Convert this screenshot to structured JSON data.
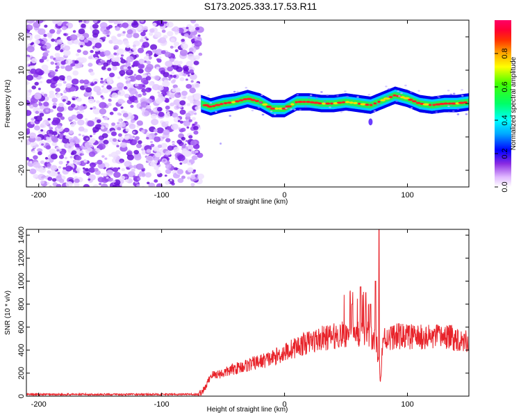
{
  "title": "S173.2025.333.17.53.R11",
  "colors": {
    "spectrogram_noise": "#7a2be0",
    "snr_line": "#e8232a",
    "axis": "#000000"
  },
  "chart_data": [
    {
      "type": "heatmap",
      "name": "spectrogram",
      "title": "S173.2025.333.17.53.R11",
      "xlabel": "Height of straight line (km)",
      "ylabel": "Frequency (Hz)",
      "xlim": [
        -210,
        150
      ],
      "ylim": [
        -25,
        25
      ],
      "xticks": [
        -200,
        -100,
        0,
        100
      ],
      "yticks": [
        -20,
        -10,
        0,
        10,
        20
      ],
      "noise_region_x": [
        -210,
        -68
      ],
      "signal_track": {
        "x": [
          -68,
          -60,
          -50,
          -40,
          -30,
          -20,
          -10,
          0,
          10,
          20,
          30,
          40,
          50,
          60,
          70,
          80,
          90,
          100,
          110,
          120,
          130,
          140,
          150
        ],
        "y": [
          0,
          -1,
          0,
          0.5,
          1.5,
          0.5,
          -1.5,
          -1.5,
          0.5,
          0.5,
          0,
          0,
          0.5,
          0,
          -0.5,
          1,
          2.5,
          1.5,
          0,
          -0.5,
          0,
          0,
          0.5
        ]
      },
      "colorbar": {
        "label": "Normalized spectral amplitude",
        "range": [
          0,
          1
        ],
        "ticks": [
          0.0,
          0.2,
          0.4,
          0.6,
          0.8
        ]
      }
    },
    {
      "type": "line",
      "name": "snr",
      "xlabel": "Height of straight line (km)",
      "ylabel": "SNR (10 * v/v)",
      "xlim": [
        -210,
        150
      ],
      "ylim": [
        0,
        1450
      ],
      "xticks": [
        -200,
        -100,
        0,
        100
      ],
      "yticks": [
        0,
        200,
        400,
        600,
        800,
        1000,
        1200,
        1400
      ],
      "envelope": {
        "x": [
          -210,
          -70,
          -65,
          -60,
          -50,
          -40,
          -30,
          -20,
          -10,
          0,
          10,
          20,
          30,
          40,
          50,
          60,
          70,
          75,
          78,
          80,
          90,
          100,
          110,
          120,
          130,
          140,
          150
        ],
        "y": [
          15,
          15,
          60,
          180,
          200,
          240,
          270,
          300,
          330,
          380,
          430,
          470,
          500,
          520,
          540,
          550,
          530,
          450,
          120,
          500,
          520,
          520,
          510,
          510,
          520,
          500,
          480
        ]
      },
      "spikes": [
        {
          "x": 62,
          "y": 950
        },
        {
          "x": 66,
          "y": 900
        },
        {
          "x": 70,
          "y": 800
        },
        {
          "x": 74,
          "y": 1000
        },
        {
          "x": 77,
          "y": 1450
        },
        {
          "x": 55,
          "y": 800
        }
      ]
    }
  ]
}
